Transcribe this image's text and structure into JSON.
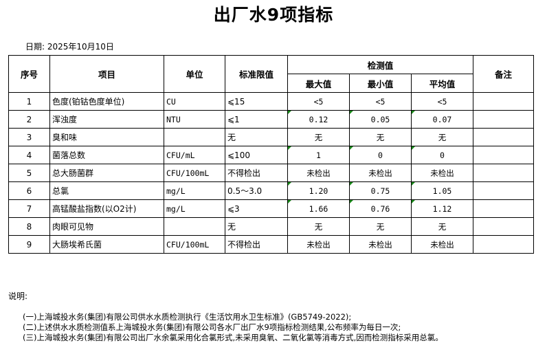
{
  "title": "出厂水9项指标",
  "date": "日期: 2025年10月10日",
  "headers": {
    "seq": "序号",
    "item": "项目",
    "unit": "单位",
    "limit": "标准限值",
    "measured": "检测值",
    "max": "最大值",
    "min": "最小值",
    "avg": "平均值",
    "remark": "备注"
  },
  "rows": [
    {
      "seq": "1",
      "item": "色度(铂钴色度单位)",
      "unit": "CU",
      "limit": "⩽15",
      "max": "<5",
      "min": "<5",
      "avg": "<5",
      "remark": "",
      "flag": false
    },
    {
      "seq": "2",
      "item": "浑浊度",
      "unit": "NTU",
      "limit": "⩽1",
      "max": "0.12",
      "min": "0.05",
      "avg": "0.07",
      "remark": "",
      "flag": true
    },
    {
      "seq": "3",
      "item": "臭和味",
      "unit": "",
      "limit": "无",
      "max": "无",
      "min": "无",
      "avg": "无",
      "remark": "",
      "flag": false
    },
    {
      "seq": "4",
      "item": "菌落总数",
      "unit": "CFU/mL",
      "limit": "⩽100",
      "max": "1",
      "min": "0",
      "avg": "0",
      "remark": "",
      "flag": true
    },
    {
      "seq": "5",
      "item": "总大肠菌群",
      "unit": "CFU/100mL",
      "limit": "不得检出",
      "max": "未检出",
      "min": "未检出",
      "avg": "未检出",
      "remark": "",
      "flag": false
    },
    {
      "seq": "6",
      "item": "总氯",
      "unit": "mg/L",
      "limit": "0.5～3.0",
      "max": "1.20",
      "min": "0.75",
      "avg": "1.05",
      "remark": "",
      "flag": true
    },
    {
      "seq": "7",
      "item": "高锰酸盐指数(以O2计)",
      "unit": "mg/L",
      "limit": "⩽3",
      "max": "1.66",
      "min": "0.76",
      "avg": "1.12",
      "remark": "",
      "flag": true
    },
    {
      "seq": "8",
      "item": "肉眼可见物",
      "unit": "",
      "limit": "无",
      "max": "无",
      "min": "无",
      "avg": "无",
      "remark": "",
      "flag": false
    },
    {
      "seq": "9",
      "item": "大肠埃希氏菌",
      "unit": "CFU/100mL",
      "limit": "不得检出",
      "max": "未检出",
      "min": "未检出",
      "avg": "未检出",
      "remark": "",
      "flag": false
    }
  ],
  "notes_heading": "说明:",
  "notes": [
    "(一)上海城投水务(集团)有限公司供水水质检测执行《生活饮用水卫生标准》(GB5749-2022);",
    "(二)上述供水水质检测值系上海城投水务(集团)有限公司各水厂出厂水9项指标检测结果,公布频率为每日一次;",
    "(三)上海城投水务(集团)有限公司出厂水余氯采用化合氯形式,未采用臭氧、二氧化氯等消毒方式,因而检测指标采用总氯。"
  ],
  "colors": {
    "indicator": "#1a8a1a"
  }
}
